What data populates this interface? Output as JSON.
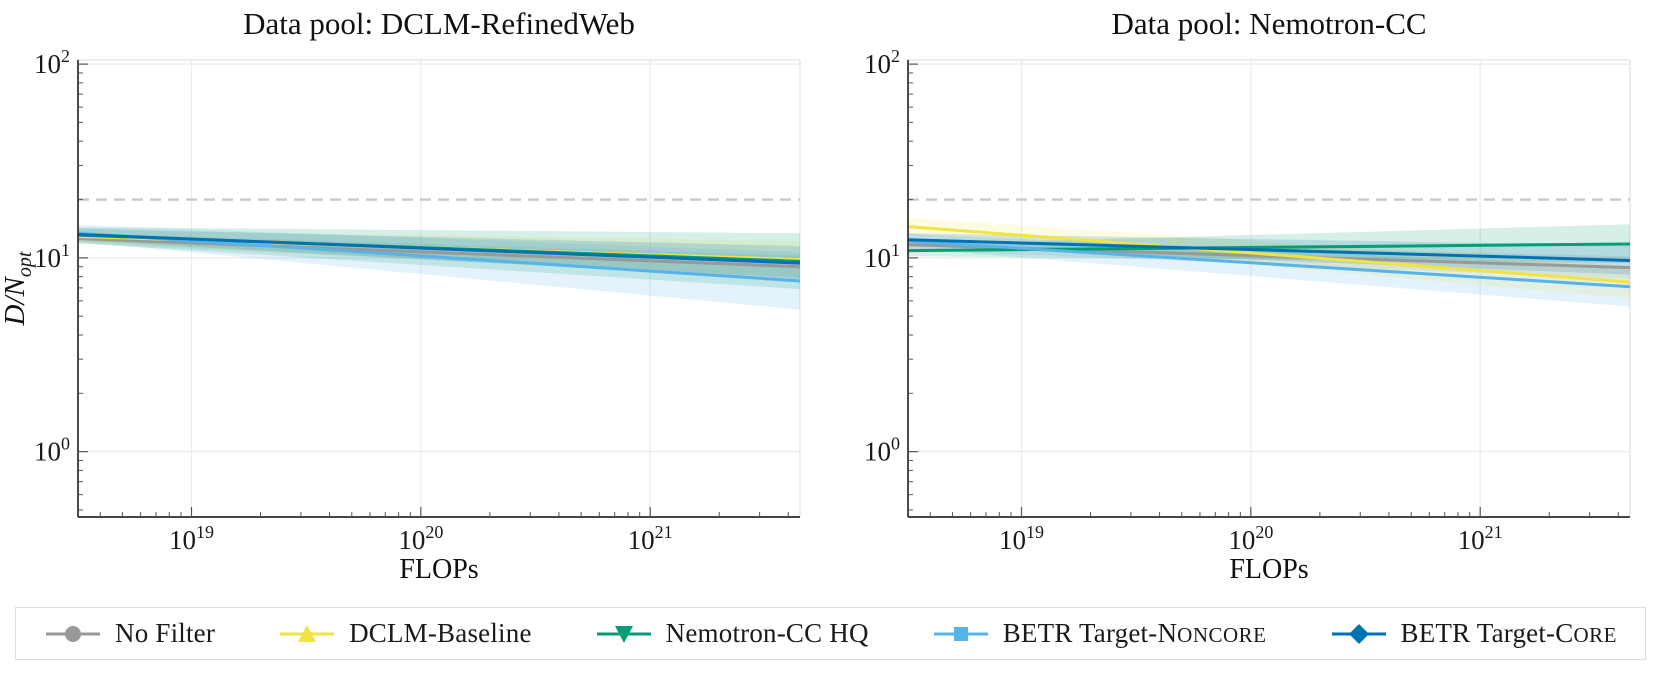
{
  "figure": {
    "background": "#ffffff",
    "reference_line_color": "#c9c9c9",
    "grid_color": "#ebebeb",
    "spine_color": "#2b2b2b",
    "light_spine_color": "#e0e0e0"
  },
  "chart_data": [
    {
      "type": "line",
      "title": "Data pool: DCLM-RefinedWeb",
      "xlabel": "FLOPs",
      "ylabel": "D/N",
      "ylabel_sub": "opt",
      "x_scale": "log",
      "y_scale": "log",
      "x_range": [
        3.2e+18,
        4.5e+21
      ],
      "y_range": [
        0.46,
        105
      ],
      "x_major_ticks": [
        1e+19,
        1e+20,
        1e+21
      ],
      "y_major_ticks": [
        1,
        10,
        100
      ],
      "dashed_reference_line_y": 20,
      "series": [
        {
          "name": "No Filter",
          "color": "#999999",
          "marker": "circle",
          "x": [
            3.2e+18,
            4.5e+21
          ],
          "y": [
            12.6,
            9.0
          ],
          "band_lo": [
            11.9,
            7.9
          ],
          "band_hi": [
            13.4,
            10.3
          ]
        },
        {
          "name": "DCLM-Baseline",
          "color": "#F0E442",
          "marker": "triangle-up",
          "x": [
            3.2e+18,
            4.5e+21
          ],
          "y": [
            12.9,
            9.8
          ],
          "band_lo": [
            12.0,
            7.9
          ],
          "band_hi": [
            13.9,
            12.2
          ]
        },
        {
          "name": "Nemotron-CC HQ",
          "color": "#009E73",
          "marker": "triangle-down",
          "x": [
            3.2e+18,
            4.5e+21
          ],
          "y": [
            13.1,
            9.6
          ],
          "band_lo": [
            11.9,
            6.9
          ],
          "band_hi": [
            14.4,
            13.4
          ]
        },
        {
          "name": "BETR Target-NONCORE",
          "color": "#56B4E9",
          "marker": "square",
          "x": [
            3.2e+18,
            4.5e+21
          ],
          "y": [
            13.4,
            7.6
          ],
          "band_lo": [
            12.1,
            5.4
          ],
          "band_hi": [
            14.8,
            10.7
          ]
        },
        {
          "name": "BETR Target-CORE",
          "color": "#0072B2",
          "marker": "diamond",
          "x": [
            3.2e+18,
            4.5e+21
          ],
          "y": [
            13.2,
            9.4
          ],
          "band_lo": [
            12.3,
            7.7
          ],
          "band_hi": [
            14.2,
            11.5
          ]
        }
      ]
    },
    {
      "type": "line",
      "title": "Data pool: Nemotron-CC",
      "xlabel": "FLOPs",
      "ylabel": "",
      "ylabel_sub": "",
      "x_scale": "log",
      "y_scale": "log",
      "x_range": [
        3.2e+18,
        4.5e+21
      ],
      "y_range": [
        0.46,
        105
      ],
      "x_major_ticks": [
        1e+19,
        1e+20,
        1e+21
      ],
      "y_major_ticks": [
        1,
        10,
        100
      ],
      "dashed_reference_line_y": 20,
      "series": [
        {
          "name": "No Filter",
          "color": "#999999",
          "marker": "circle",
          "x": [
            3.2e+18,
            4.5e+21
          ],
          "y": [
            11.7,
            8.9
          ],
          "band_lo": [
            11.0,
            7.8
          ],
          "band_hi": [
            12.5,
            10.2
          ]
        },
        {
          "name": "DCLM-Baseline",
          "color": "#F0E442",
          "marker": "triangle-up",
          "x": [
            3.2e+18,
            4.5e+21
          ],
          "y": [
            14.5,
            7.5
          ],
          "band_lo": [
            13.1,
            6.2
          ],
          "band_hi": [
            16.1,
            9.1
          ]
        },
        {
          "name": "Nemotron-CC HQ",
          "color": "#009E73",
          "marker": "triangle-down",
          "x": [
            3.2e+18,
            4.5e+21
          ],
          "y": [
            10.9,
            11.8
          ],
          "band_lo": [
            10.2,
            9.4
          ],
          "band_hi": [
            11.7,
            14.9
          ]
        },
        {
          "name": "BETR Target-NONCORE",
          "color": "#56B4E9",
          "marker": "square",
          "x": [
            3.2e+18,
            4.5e+21
          ],
          "y": [
            12.2,
            7.1
          ],
          "band_lo": [
            11.2,
            5.6
          ],
          "band_hi": [
            13.3,
            9.0
          ]
        },
        {
          "name": "BETR Target-CORE",
          "color": "#0072B2",
          "marker": "diamond",
          "x": [
            3.2e+18,
            4.5e+21
          ],
          "y": [
            12.4,
            9.7
          ],
          "band_lo": [
            11.5,
            8.2
          ],
          "band_hi": [
            13.4,
            11.6
          ]
        }
      ]
    }
  ],
  "legend": {
    "items": [
      {
        "label": "No Filter",
        "label_pre": "No Filter",
        "label_sc": "",
        "marker": "circle",
        "color": "#999999"
      },
      {
        "label": "DCLM-Baseline",
        "label_pre": "DCLM-Baseline",
        "label_sc": "",
        "marker": "triangle-up",
        "color": "#F0E442"
      },
      {
        "label": "Nemotron-CC HQ",
        "label_pre": "Nemotron-CC HQ",
        "label_sc": "",
        "marker": "triangle-down",
        "color": "#009E73"
      },
      {
        "label": "BETR Target-NONCORE",
        "label_pre": "BETR Target-N",
        "label_sc": "ONCORE",
        "marker": "square",
        "color": "#56B4E9"
      },
      {
        "label": "BETR Target-CORE",
        "label_pre": "BETR Target-C",
        "label_sc": "ORE",
        "marker": "diamond",
        "color": "#0072B2"
      }
    ]
  }
}
